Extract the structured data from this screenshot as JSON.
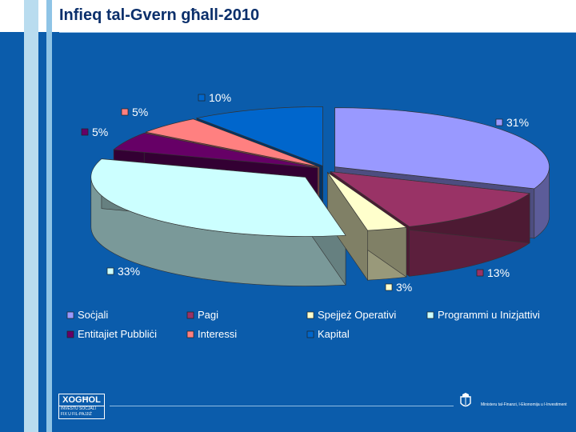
{
  "header": {
    "title": "Infieq tal-Gvern għall-2010"
  },
  "colors": {
    "background": "#0b5cab",
    "title": "#0b2f6b"
  },
  "chart_data": {
    "type": "pie",
    "style": "3d-exploded",
    "title": "",
    "legend_placement": "bottom",
    "slices": [
      {
        "name": "Soċjali",
        "value": 31,
        "label": "31%",
        "color": "#9999ff"
      },
      {
        "name": "Pagi",
        "value": 13,
        "label": "13%",
        "color": "#993366"
      },
      {
        "name": "Spejjeż Operativi",
        "value": 3,
        "label": "3%",
        "color": "#ffffcc"
      },
      {
        "name": "Programmi u Inizjattivi",
        "value": 33,
        "label": "33%",
        "color": "#ccffff"
      },
      {
        "name": "Entitajiet Pubbliċi",
        "value": 5,
        "label": "5%",
        "color": "#660066"
      },
      {
        "name": "Interessi",
        "value": 5,
        "label": "5%",
        "color": "#ff8080"
      },
      {
        "name": "Kapital",
        "value": 10,
        "label": "10%",
        "color": "#0066cc"
      }
    ]
  },
  "footer": {
    "logo_top": "XOGĦOL",
    "logo_line1": "INVESTU SOĊJALI",
    "logo_line2": "FIX U FIL-PAJJIŻ",
    "ministry": "Ministeru tal-Finanzi, l-Ekonomija u l-Investiment"
  }
}
